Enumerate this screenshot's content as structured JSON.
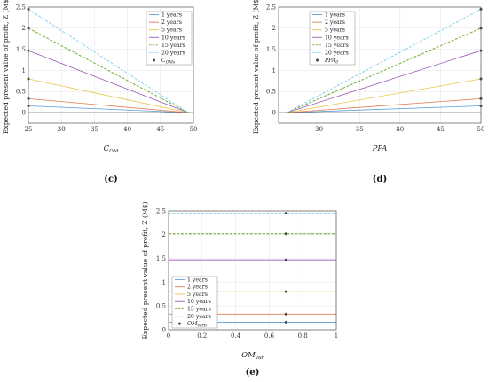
{
  "colors": {
    "1 years": "#5b9bd5",
    "2 years": "#e07b54",
    "5 years": "#e8c54a",
    "10 years": "#9b59b6",
    "15 years": "#7cb342",
    "20 years": "#8fd3f4",
    "marker": "#444444",
    "axis": "#555555",
    "grid": "#e4e4e4"
  },
  "chart_data": [
    {
      "type": "line",
      "panel_label": "(c)",
      "xlabel": {
        "main": "C",
        "sub": "OM"
      },
      "ylabel": "Expected present value of profit, Z (M$)",
      "xlim": [
        25,
        50
      ],
      "ylim": [
        -0.25,
        2.5
      ],
      "xticks": [
        25,
        30,
        35,
        40,
        45,
        50
      ],
      "yticks": [
        0,
        0.5,
        1,
        1.5,
        2,
        2.5
      ],
      "ytick_labels": [
        "0",
        "0.5",
        "1",
        "1.5",
        "2",
        "2.5"
      ],
      "grid": true,
      "legend_position": "top-right",
      "legend_entries": [
        "1 years",
        "2 years",
        "5 years",
        "10 years",
        "15 years",
        "20 years"
      ],
      "marker_label": {
        "main": "C",
        "sub": "OMs"
      },
      "series": [
        {
          "name": "1 years",
          "x": [
            25,
            49.2
          ],
          "y": [
            0.16,
            0.0
          ]
        },
        {
          "name": "2 years",
          "x": [
            25,
            49.2
          ],
          "y": [
            0.33,
            0.0
          ]
        },
        {
          "name": "5 years",
          "x": [
            25,
            49.2
          ],
          "y": [
            0.8,
            0.0
          ]
        },
        {
          "name": "10 years",
          "x": [
            25,
            49.2
          ],
          "y": [
            1.47,
            0.0
          ]
        },
        {
          "name": "15 years",
          "x": [
            25,
            49.2
          ],
          "y": [
            2.0,
            0.0
          ]
        },
        {
          "name": "20 years",
          "x": [
            25,
            49.2
          ],
          "y": [
            2.45,
            0.0
          ]
        }
      ],
      "markers": [
        [
          25,
          0.16
        ],
        [
          25,
          0.33
        ],
        [
          25,
          0.8
        ],
        [
          25,
          1.47
        ],
        [
          25,
          2.0
        ],
        [
          25,
          2.45
        ]
      ]
    },
    {
      "type": "line",
      "panel_label": "(d)",
      "xlabel": {
        "main": "PPA",
        "sub": ""
      },
      "ylabel": "Expected present value of profit, Z (M$)",
      "xlim": [
        25,
        50
      ],
      "ylim": [
        -0.25,
        2.5
      ],
      "xticks": [
        30,
        35,
        40,
        45,
        50
      ],
      "yticks": [
        0,
        0.5,
        1,
        1.5,
        2,
        2.5
      ],
      "ytick_labels": [
        "0",
        "0.5",
        "1",
        "1.5",
        "2",
        "2.5"
      ],
      "grid": true,
      "legend_position": "top-left",
      "legend_entries": [
        "1 years",
        "2 years",
        "5 years",
        "10 years",
        "15 years",
        "20 years"
      ],
      "marker_label": {
        "main": "PPA",
        "sub": "0"
      },
      "series": [
        {
          "name": "1 years",
          "x": [
            26,
            50
          ],
          "y": [
            0.0,
            0.16
          ]
        },
        {
          "name": "2 years",
          "x": [
            26,
            50
          ],
          "y": [
            0.0,
            0.33
          ]
        },
        {
          "name": "5 years",
          "x": [
            26,
            50
          ],
          "y": [
            0.0,
            0.8
          ]
        },
        {
          "name": "10 years",
          "x": [
            26,
            50
          ],
          "y": [
            0.0,
            1.47
          ]
        },
        {
          "name": "15 years",
          "x": [
            26,
            50
          ],
          "y": [
            0.0,
            2.0
          ]
        },
        {
          "name": "20 years",
          "x": [
            26,
            50
          ],
          "y": [
            0.0,
            2.45
          ]
        }
      ],
      "markers": [
        [
          50,
          0.16
        ],
        [
          50,
          0.33
        ],
        [
          50,
          0.8
        ],
        [
          50,
          1.47
        ],
        [
          50,
          2.0
        ],
        [
          50,
          2.45
        ]
      ]
    },
    {
      "type": "line",
      "panel_label": "(e)",
      "xlabel": {
        "main": "OM",
        "sub": "var"
      },
      "ylabel": "Expected present value of profit, Z (M$)",
      "xlim": [
        0,
        1
      ],
      "ylim": [
        0,
        2.5
      ],
      "xticks": [
        0,
        0.2,
        0.4,
        0.6,
        0.8,
        1
      ],
      "xtick_labels": [
        "0",
        "0.2",
        "0.4",
        "0.6",
        "0.8",
        "1"
      ],
      "yticks": [
        0,
        0.5,
        1,
        1.5,
        2,
        2.5
      ],
      "ytick_labels": [
        "0",
        "0.5",
        "1",
        "1.5",
        "2",
        "2.5"
      ],
      "grid": true,
      "legend_position": "bottom-left",
      "legend_entries": [
        "1 years",
        "2 years",
        "5 years",
        "10 years",
        "15 years",
        "20 years"
      ],
      "marker_label": {
        "main": "OM",
        "sub": "varB"
      },
      "series": [
        {
          "name": "1 years",
          "x": [
            0,
            1
          ],
          "y": [
            0.16,
            0.16
          ]
        },
        {
          "name": "2 years",
          "x": [
            0,
            1
          ],
          "y": [
            0.33,
            0.33
          ]
        },
        {
          "name": "5 years",
          "x": [
            0,
            1
          ],
          "y": [
            0.8,
            0.8
          ]
        },
        {
          "name": "10 years",
          "x": [
            0,
            1
          ],
          "y": [
            1.47,
            1.47
          ]
        },
        {
          "name": "15 years",
          "x": [
            0,
            1
          ],
          "y": [
            2.02,
            2.02
          ]
        },
        {
          "name": "20 years",
          "x": [
            0,
            1
          ],
          "y": [
            2.45,
            2.45
          ]
        }
      ],
      "markers": [
        [
          0.7,
          0.16
        ],
        [
          0.7,
          0.33
        ],
        [
          0.7,
          0.8
        ],
        [
          0.7,
          1.47
        ],
        [
          0.7,
          2.02
        ],
        [
          0.7,
          2.45
        ]
      ]
    }
  ]
}
